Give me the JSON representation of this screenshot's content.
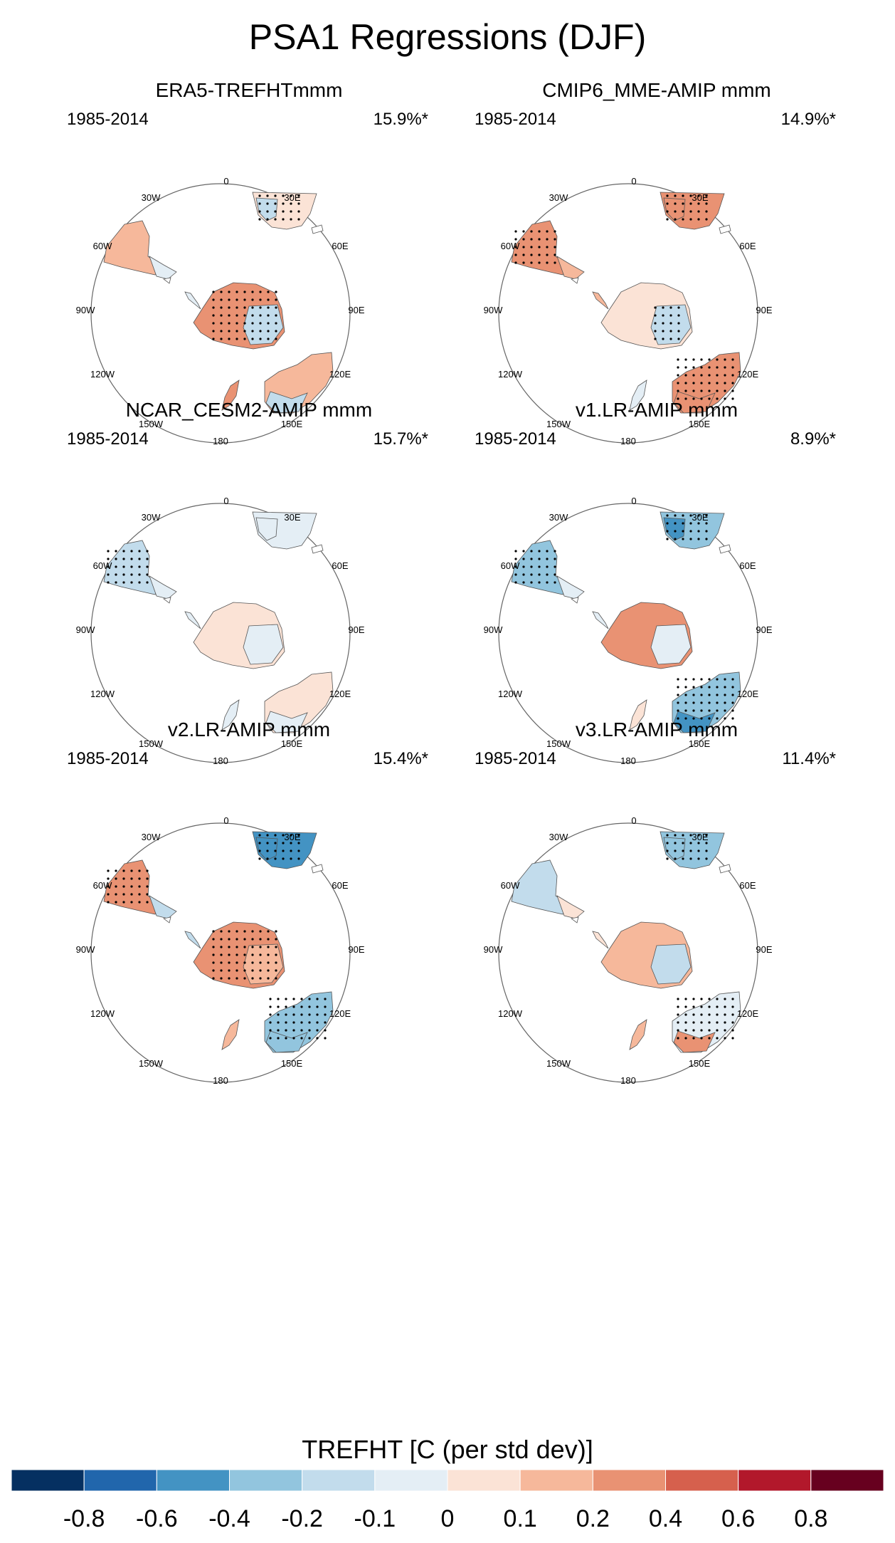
{
  "title": "PSA1 Regressions (DJF)",
  "lon_labels": [
    "0",
    "30E",
    "60E",
    "90E",
    "120E",
    "150E",
    "180",
    "150W",
    "120W",
    "90W",
    "60W",
    "30W"
  ],
  "panels": [
    {
      "id": "era5",
      "name": "ERA5-TREFHTmmm",
      "period": "1985-2014",
      "variance": "15.9%*",
      "fields": {
        "safrica": 0.05,
        "safrica_n": -0.2,
        "australia": 0.15,
        "australia_s": -0.15,
        "samerica": 0.15,
        "samerica_s": -0.1,
        "ant": 0.3,
        "ant_e": -0.2,
        "nz": 0.2
      },
      "stipple": [
        "safrica",
        "ant"
      ]
    },
    {
      "id": "cmip6",
      "name": "CMIP6_MME-AMIP  mmm",
      "period": "1985-2014",
      "variance": "14.9%*",
      "fields": {
        "safrica": 0.3,
        "safrica_n": 0.35,
        "australia": 0.3,
        "australia_s": 0.2,
        "samerica": 0.35,
        "samerica_s": 0.1,
        "ant": 0.03,
        "ant_e": -0.15,
        "nz": -0.1
      },
      "stipple": [
        "safrica",
        "australia",
        "samerica",
        "ant_e"
      ]
    },
    {
      "id": "cesm2",
      "name": "NCAR_CESM2-AMIP  mmm",
      "period": "1985-2014",
      "variance": "15.7%*",
      "fields": {
        "safrica": -0.08,
        "safrica_n": -0.1,
        "australia": 0.05,
        "australia_s": -0.05,
        "samerica": -0.2,
        "samerica_s": -0.1,
        "ant": 0.05,
        "ant_e": -0.05,
        "nz": -0.03
      },
      "stipple": [
        "samerica"
      ]
    },
    {
      "id": "v1lr",
      "name": "v1.LR-AMIP  mmm",
      "period": "1985-2014",
      "variance": "8.9%*",
      "fields": {
        "safrica": -0.4,
        "safrica_n": -0.6,
        "australia": -0.35,
        "australia_s": -0.5,
        "samerica": -0.25,
        "samerica_s": -0.1,
        "ant": 0.2,
        "ant_e": -0.1,
        "nz": 0.03
      },
      "stipple": [
        "safrica",
        "australia",
        "samerica"
      ]
    },
    {
      "id": "v2lr",
      "name": "v2.LR-AMIP  mmm",
      "period": "1985-2014",
      "variance": "15.4%*",
      "fields": {
        "safrica": -0.45,
        "safrica_n": -0.6,
        "australia": -0.3,
        "australia_s": -0.35,
        "samerica": 0.3,
        "samerica_s": -0.2,
        "ant": 0.25,
        "ant_e": 0.15,
        "nz": 0.15
      },
      "stipple": [
        "safrica",
        "australia",
        "samerica",
        "ant"
      ]
    },
    {
      "id": "v3lr",
      "name": "v3.LR-AMIP  mmm",
      "period": "1985-2014",
      "variance": "11.4%*",
      "fields": {
        "safrica": -0.35,
        "safrica_n": -0.3,
        "australia": -0.1,
        "australia_s": 0.2,
        "samerica": -0.15,
        "samerica_s": 0.05,
        "ant": 0.15,
        "ant_e": -0.15,
        "nz": 0.1
      },
      "stipple": [
        "safrica",
        "australia"
      ]
    }
  ],
  "colorbar": {
    "title": "TREFHT [C (per std dev)]",
    "tick_labels": [
      "-0.8",
      "-0.6",
      "-0.4",
      "-0.2",
      "-0.1",
      "0",
      "0.1",
      "0.2",
      "0.4",
      "0.6",
      "0.8"
    ],
    "colors": [
      "#053061",
      "#2166ac",
      "#4393c3",
      "#92c5de",
      "#c2dcec",
      "#e4eef5",
      "#fbe3d6",
      "#f6b89b",
      "#e99273",
      "#d6604d",
      "#b2182b",
      "#67001f"
    ]
  }
}
